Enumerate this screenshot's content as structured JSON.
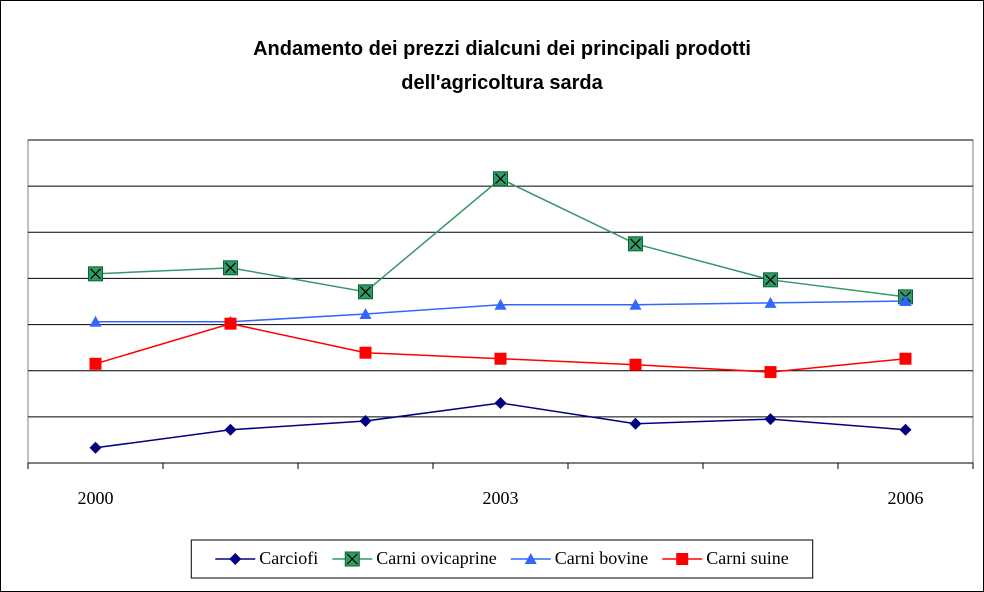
{
  "chart_data": {
    "type": "line",
    "title": [
      "Andamento dei prezzi dialcuni dei principali prodotti",
      "dell'agricoltura sarda"
    ],
    "categories": [
      "2000",
      null,
      null,
      "2003",
      null,
      null,
      "2006"
    ],
    "series": [
      {
        "name": "Carciofi",
        "color": "#000080",
        "marker": "diamond",
        "values": [
          0.33,
          0.72,
          0.91,
          1.3,
          0.85,
          0.95,
          0.72
        ]
      },
      {
        "name": "Carni ovicaprine",
        "color": "#339966",
        "marker": "square-x",
        "values": [
          4.1,
          4.23,
          3.71,
          6.16,
          4.75,
          3.97,
          3.6
        ]
      },
      {
        "name": "Carni bovine",
        "color": "#3366FF",
        "marker": "triangle",
        "values": [
          3.06,
          3.06,
          3.23,
          3.43,
          3.43,
          3.47,
          3.51
        ]
      },
      {
        "name": "Carni suine",
        "color": "#FF0000",
        "marker": "square",
        "values": [
          2.15,
          3.02,
          2.39,
          2.26,
          2.13,
          1.97,
          2.26
        ]
      }
    ],
    "ylim": [
      0,
      7
    ],
    "yticks": [
      0,
      1,
      2,
      3,
      4,
      5,
      6,
      7
    ],
    "grid": true,
    "legend": "bottom"
  }
}
